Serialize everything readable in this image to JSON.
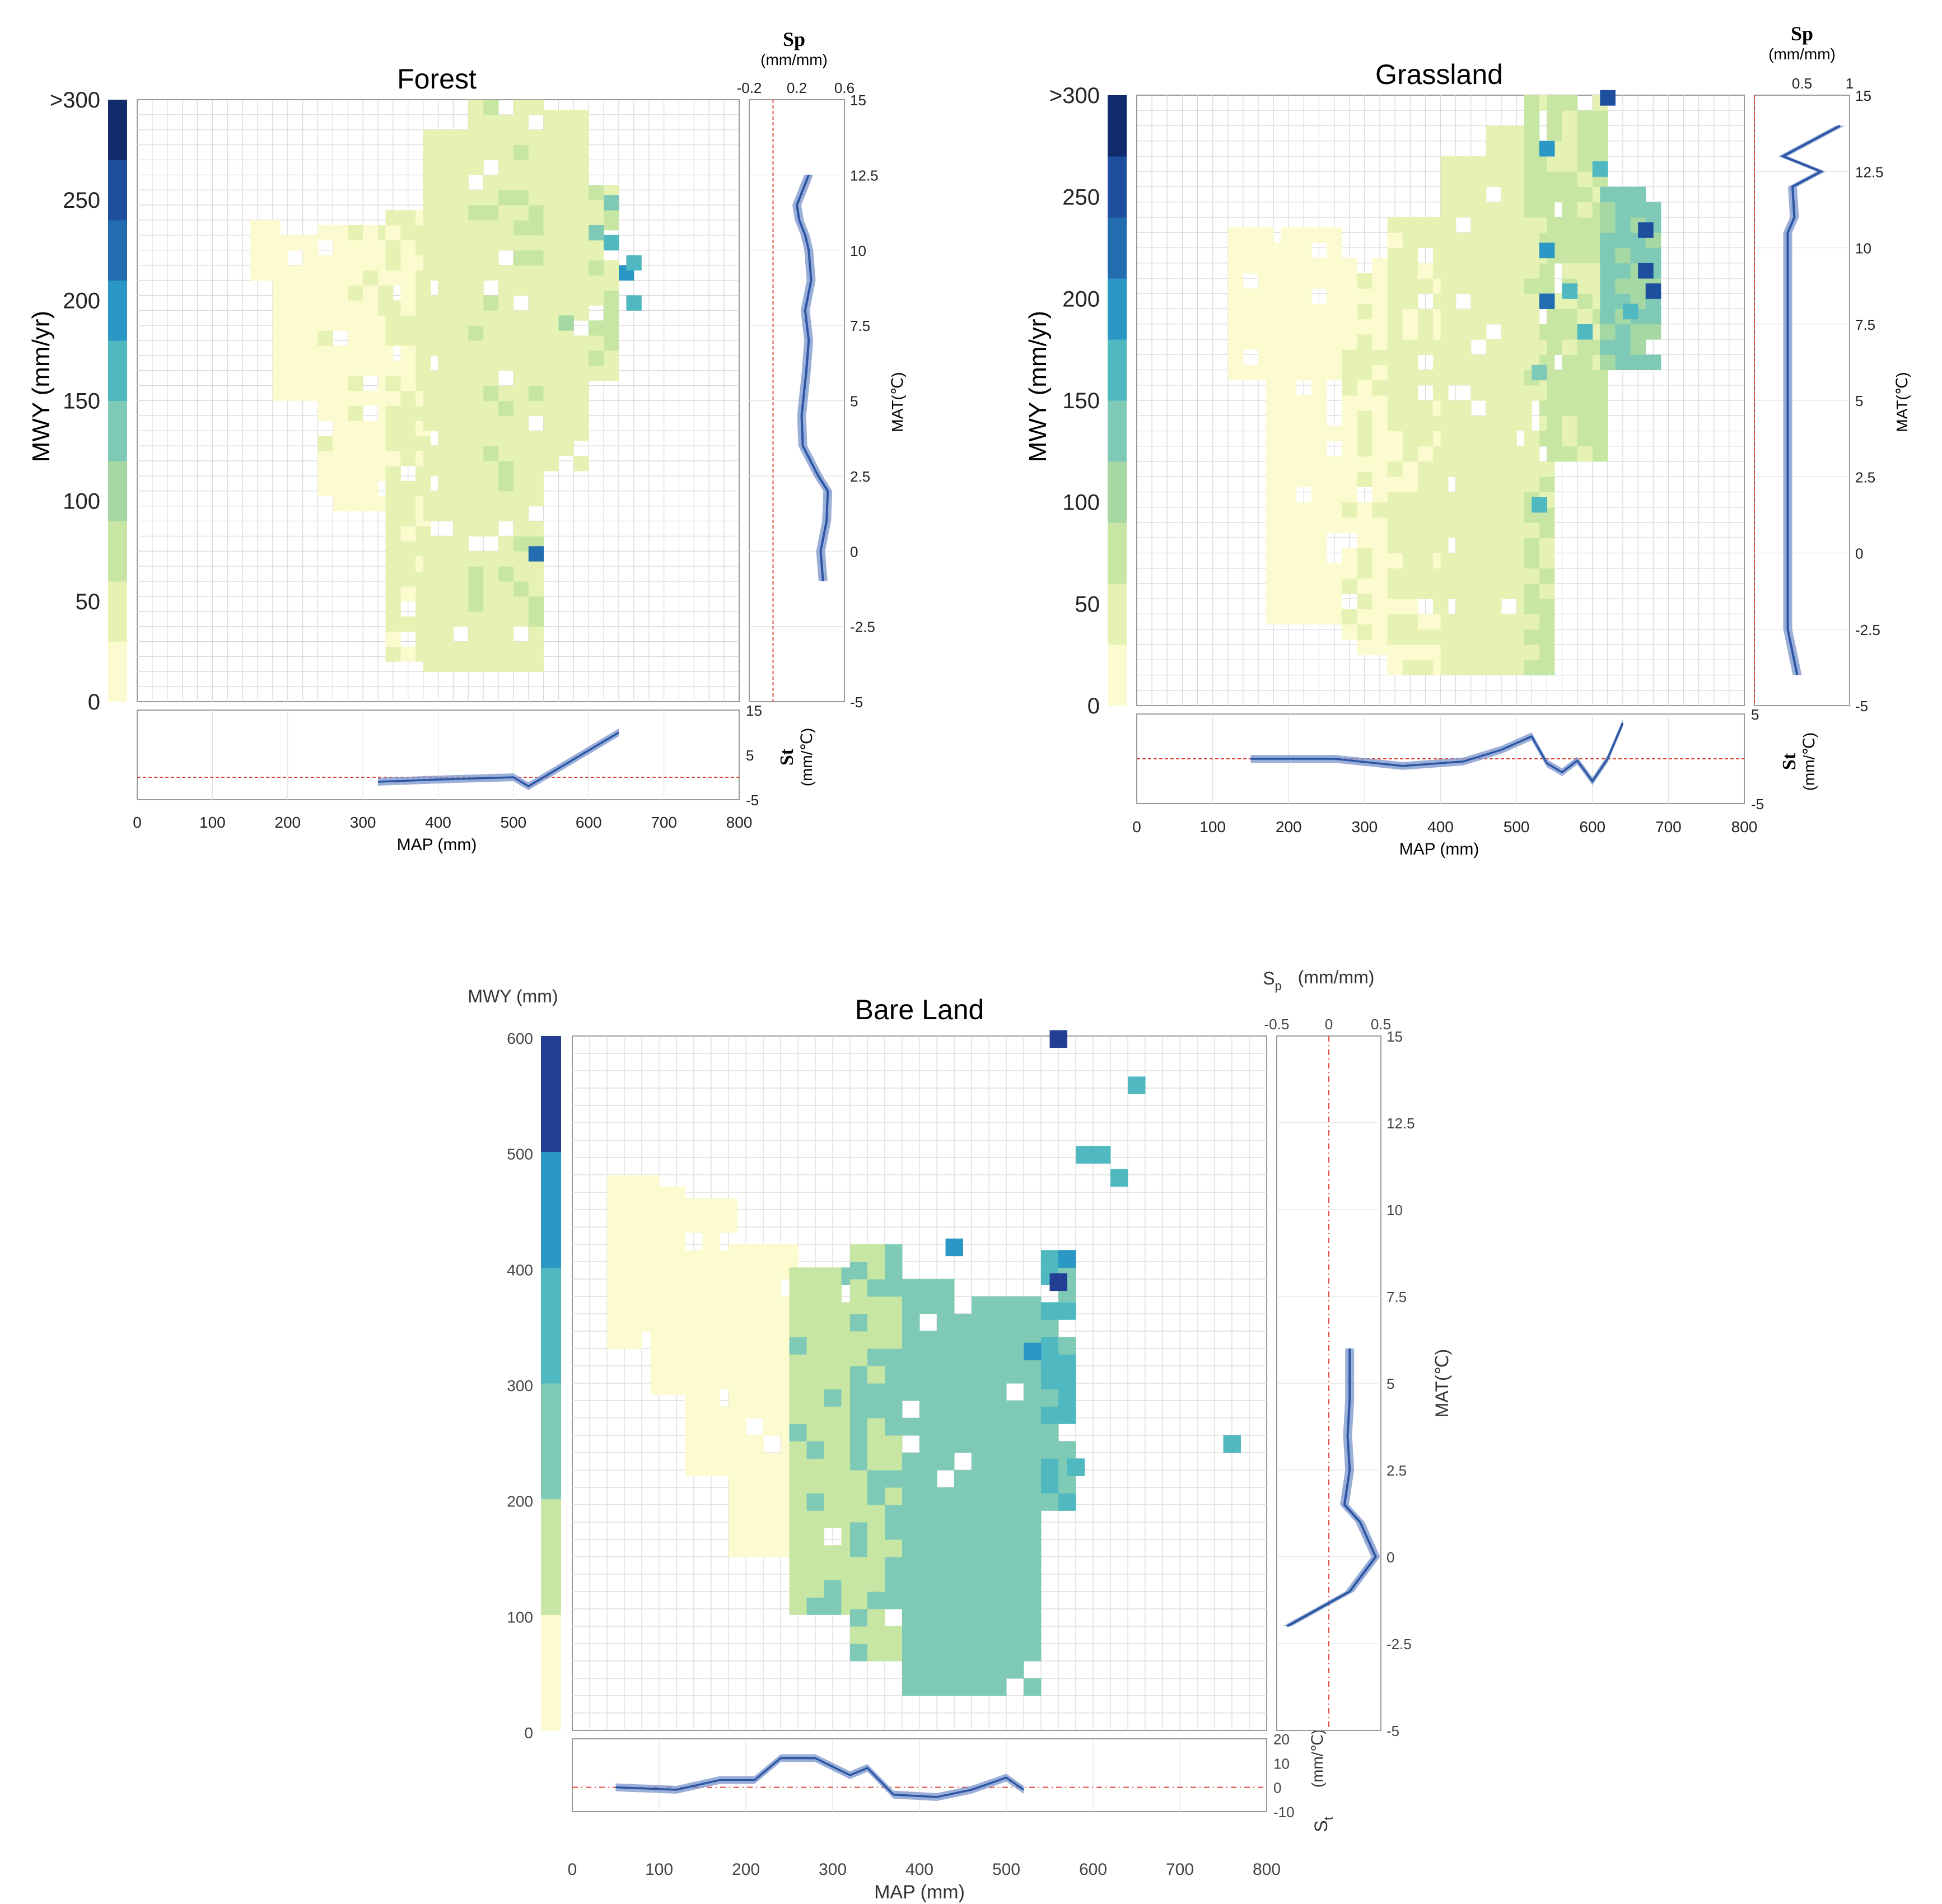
{
  "panels": {
    "forest": {
      "title": "Forest",
      "ylabel": "MWY (mm/yr)",
      "cbar_ticks": [
        ">300",
        "250",
        "200",
        "150",
        "100",
        "50",
        "0"
      ],
      "xlabel": "MAP (mm)",
      "xticks": [
        "0",
        "100",
        "200",
        "300",
        "400",
        "500",
        "600",
        "700",
        "800"
      ],
      "sp_title": "Sp",
      "sp_unit": "(mm/mm)",
      "sp_ticks": [
        "-0.2",
        "0.2",
        "0.6"
      ],
      "mat_ticks": [
        "15",
        "12.5",
        "10",
        "7.5",
        "5",
        "2.5",
        "0",
        "-2.5",
        "-5"
      ],
      "mat_label": "MAT(℃)",
      "st_ticks": [
        "15",
        "5",
        "-5"
      ],
      "st_title": "St",
      "st_unit": "(mm/℃)"
    },
    "grassland": {
      "title": "Grassland",
      "ylabel": "MWY (mm/yr)",
      "cbar_ticks": [
        ">300",
        "250",
        "200",
        "150",
        "100",
        "50",
        "0"
      ],
      "xlabel": "MAP (mm)",
      "xticks": [
        "0",
        "100",
        "200",
        "300",
        "400",
        "500",
        "600",
        "700",
        "800"
      ],
      "sp_title": "Sp",
      "sp_unit": "(mm/mm)",
      "sp_ticks": [
        "0.5",
        "1"
      ],
      "mat_ticks": [
        "15",
        "12.5",
        "10",
        "7.5",
        "5",
        "2.5",
        "0",
        "-2.5",
        "-5"
      ],
      "mat_label": "MAT(℃)",
      "st_ticks": [
        "5",
        "-5"
      ],
      "st_title": "St",
      "st_unit": "(mm/℃)"
    },
    "bare": {
      "title": "Bare Land",
      "ylabel": "MWY (mm)",
      "cbar_ticks": [
        "600",
        "500",
        "400",
        "300",
        "200",
        "100",
        "0"
      ],
      "xlabel": "MAP (mm)",
      "xticks": [
        "0",
        "100",
        "200",
        "300",
        "400",
        "500",
        "600",
        "700",
        "800"
      ],
      "sp_title": "S",
      "sp_sub": "p",
      "sp_unit": "(mm/mm)",
      "sp_ticks": [
        "-0.5",
        "0",
        "0.5"
      ],
      "mat_ticks": [
        "15",
        "12.5",
        "10",
        "7.5",
        "5",
        "2.5",
        "0",
        "-2.5",
        "-5"
      ],
      "mat_label": "MAT(℃)",
      "st_ticks": [
        "20",
        "10",
        "0",
        "-10"
      ],
      "st_title": "S",
      "st_sub": "t",
      "st_unit": "(mm/℃)"
    }
  },
  "chart_data": [
    {
      "type": "heatmap",
      "title": "Forest",
      "xlabel": "MAP (mm)",
      "ylabel": "MWY (mm/yr)",
      "xlim": [
        0,
        800
      ],
      "ylim": [
        0,
        300
      ],
      "colormap": [
        "#fbfbcf",
        "#e6f2b3",
        "#c8e6a3",
        "#a6d8a4",
        "#7fcab6",
        "#4fb8c1",
        "#2a97c4",
        "#226db0",
        "#1d4f9e",
        "#112a6b"
      ],
      "colormap_bounds": [
        0,
        25,
        50,
        75,
        100,
        125,
        150,
        175,
        200,
        250,
        300
      ],
      "side_sp": {
        "xlabel": "Sp (mm/mm)",
        "xlim": [
          -0.2,
          0.6
        ],
        "ylabel": "MAT(℃)",
        "ylim": [
          -5,
          15
        ],
        "reference": 0,
        "points": [
          [
            0.42,
            -1
          ],
          [
            0.4,
            0
          ],
          [
            0.45,
            1
          ],
          [
            0.46,
            2
          ],
          [
            0.38,
            2.5
          ],
          [
            0.25,
            3.5
          ],
          [
            0.24,
            4.5
          ],
          [
            0.28,
            6
          ],
          [
            0.3,
            7
          ],
          [
            0.27,
            8
          ],
          [
            0.32,
            9
          ],
          [
            0.3,
            10
          ],
          [
            0.27,
            10.5
          ],
          [
            0.22,
            11
          ],
          [
            0.2,
            11.5
          ],
          [
            0.25,
            12
          ],
          [
            0.3,
            12.5
          ]
        ]
      },
      "side_st": {
        "xlabel": "MAP (mm)",
        "xlim": [
          0,
          800
        ],
        "ylabel": "St (mm/℃)",
        "ylim": [
          -5,
          15
        ],
        "reference": 0,
        "points": [
          [
            320,
            -1
          ],
          [
            400,
            -0.5
          ],
          [
            500,
            0
          ],
          [
            520,
            -2
          ],
          [
            550,
            1
          ],
          [
            600,
            6
          ],
          [
            640,
            10
          ]
        ]
      },
      "band_cells": [
        {
          "x": [
            150,
            180
          ],
          "y": [
            210,
            235
          ],
          "v": 0.05
        },
        {
          "x": [
            180,
            240
          ],
          "y": [
            150,
            230
          ],
          "v": 0.05
        },
        {
          "x": [
            240,
            330
          ],
          "y": [
            95,
            235
          ],
          "v": 0.07
        },
        {
          "x": [
            330,
            380
          ],
          "y": [
            20,
            240
          ],
          "v": 0.12
        },
        {
          "x": [
            380,
            440
          ],
          "y": [
            15,
            285
          ],
          "v": 0.15
        },
        {
          "x": [
            440,
            540
          ],
          "y": [
            15,
            295
          ],
          "v": 0.17
        },
        {
          "x": [
            540,
            600
          ],
          "y": [
            115,
            295
          ],
          "v": 0.16
        },
        {
          "x": [
            600,
            640
          ],
          "y": [
            160,
            255
          ],
          "v": 0.2
        }
      ],
      "hot_cells": [
        [
          520,
          70,
          0.75
        ],
        [
          620,
          225,
          0.55
        ],
        [
          640,
          210,
          0.6
        ],
        [
          650,
          215,
          0.58
        ],
        [
          620,
          245,
          0.45
        ],
        [
          650,
          195,
          0.5
        ],
        [
          600,
          230,
          0.45
        ],
        [
          560,
          185,
          0.3
        ]
      ]
    },
    {
      "type": "heatmap",
      "title": "Grassland",
      "xlabel": "MAP (mm)",
      "ylabel": "MWY (mm/yr)",
      "xlim": [
        0,
        800
      ],
      "ylim": [
        0,
        300
      ],
      "colormap": [
        "#fbfbcf",
        "#e6f2b3",
        "#c8e6a3",
        "#a6d8a4",
        "#7fcab6",
        "#4fb8c1",
        "#2a97c4",
        "#226db0",
        "#1d4f9e",
        "#112a6b"
      ],
      "colormap_bounds": [
        0,
        25,
        50,
        75,
        100,
        125,
        150,
        175,
        200,
        250,
        300
      ],
      "side_sp": {
        "xlabel": "Sp (mm/mm)",
        "xlim": [
          0,
          1
        ],
        "ylabel": "MAT(℃)",
        "ylim": [
          -5,
          15
        ],
        "reference": 0,
        "points": [
          [
            0.45,
            -4
          ],
          [
            0.35,
            -2.5
          ],
          [
            0.35,
            10.5
          ],
          [
            0.42,
            11
          ],
          [
            0.4,
            12
          ],
          [
            0.7,
            12.5
          ],
          [
            0.3,
            13
          ],
          [
            0.9,
            14
          ]
        ]
      },
      "side_st": {
        "xlabel": "MAP (mm)",
        "xlim": [
          0,
          800
        ],
        "ylabel": "St (mm/℃)",
        "ylim": [
          -5,
          5
        ],
        "reference": 0,
        "points": [
          [
            150,
            0
          ],
          [
            260,
            0
          ],
          [
            350,
            -0.8
          ],
          [
            430,
            -0.3
          ],
          [
            480,
            1
          ],
          [
            520,
            2.5
          ],
          [
            540,
            -0.5
          ],
          [
            560,
            -1.5
          ],
          [
            580,
            -0.2
          ],
          [
            600,
            -2.5
          ],
          [
            620,
            0
          ],
          [
            640,
            4
          ]
        ]
      },
      "band_cells": [
        {
          "x": [
            120,
            170
          ],
          "y": [
            160,
            235
          ],
          "v": 0.05
        },
        {
          "x": [
            170,
            270
          ],
          "y": [
            40,
            235
          ],
          "v": 0.05
        },
        {
          "x": [
            270,
            330
          ],
          "y": [
            25,
            220
          ],
          "v": 0.08
        },
        {
          "x": [
            330,
            400
          ],
          "y": [
            15,
            240
          ],
          "v": 0.12
        },
        {
          "x": [
            400,
            460
          ],
          "y": [
            15,
            270
          ],
          "v": 0.14
        },
        {
          "x": [
            460,
            510
          ],
          "y": [
            15,
            285
          ],
          "v": 0.16
        },
        {
          "x": [
            510,
            540
          ],
          "y": [
            15,
            300
          ],
          "v": 0.2
        },
        {
          "x": [
            540,
            610
          ],
          "y": [
            120,
            300
          ],
          "v": 0.22
        },
        {
          "x": [
            610,
            680
          ],
          "y": [
            165,
            250
          ],
          "v": 0.4
        }
      ],
      "hot_cells": [
        [
          530,
          270,
          0.65
        ],
        [
          530,
          220,
          0.6
        ],
        [
          530,
          195,
          0.7
        ],
        [
          610,
          295,
          0.85
        ],
        [
          660,
          230,
          0.85
        ],
        [
          660,
          210,
          0.88
        ],
        [
          670,
          200,
          0.8
        ],
        [
          560,
          200,
          0.55
        ],
        [
          580,
          180,
          0.5
        ],
        [
          600,
          260,
          0.5
        ],
        [
          640,
          190,
          0.55
        ],
        [
          520,
          160,
          0.45
        ],
        [
          520,
          95,
          0.5
        ]
      ]
    },
    {
      "type": "heatmap",
      "title": "Bare Land",
      "xlabel": "MAP (mm)",
      "ylabel": "MWY (mm)",
      "xlim": [
        0,
        800
      ],
      "ylim": [
        0,
        600
      ],
      "colormap": [
        "#fbfbcf",
        "#c8e6a3",
        "#7fcab6",
        "#4fb8c1",
        "#2a97c4",
        "#223f94"
      ],
      "colormap_bounds": [
        0,
        100,
        200,
        300,
        400,
        500,
        600
      ],
      "side_sp": {
        "xlabel": "Sp (mm/mm)",
        "xlim": [
          -0.5,
          0.5
        ],
        "ylabel": "MAT(℃)",
        "ylim": [
          -5,
          15
        ],
        "reference": 0,
        "points": [
          [
            -0.4,
            -2
          ],
          [
            0.2,
            -1
          ],
          [
            0.45,
            0
          ],
          [
            0.3,
            1
          ],
          [
            0.15,
            1.5
          ],
          [
            0.2,
            2.5
          ],
          [
            0.18,
            3.5
          ],
          [
            0.2,
            4.5
          ],
          [
            0.2,
            6
          ]
        ]
      },
      "side_st": {
        "xlabel": "MAP (mm)",
        "xlim": [
          0,
          800
        ],
        "ylabel": "St (mm/℃)",
        "ylim": [
          -10,
          20
        ],
        "reference": 0,
        "points": [
          [
            50,
            0
          ],
          [
            120,
            -1
          ],
          [
            170,
            3
          ],
          [
            210,
            3
          ],
          [
            240,
            12
          ],
          [
            280,
            12
          ],
          [
            320,
            5
          ],
          [
            340,
            8
          ],
          [
            370,
            -3
          ],
          [
            420,
            -4
          ],
          [
            460,
            -1
          ],
          [
            500,
            4
          ],
          [
            520,
            -1
          ]
        ]
      },
      "band_cells": [
        {
          "x": [
            40,
            90
          ],
          "y": [
            330,
            480
          ],
          "v": 0.05
        },
        {
          "x": [
            90,
            130
          ],
          "y": [
            290,
            470
          ],
          "v": 0.05
        },
        {
          "x": [
            130,
            180
          ],
          "y": [
            220,
            460
          ],
          "v": 0.05
        },
        {
          "x": [
            180,
            250
          ],
          "y": [
            150,
            420
          ],
          "v": 0.07
        },
        {
          "x": [
            250,
            320
          ],
          "y": [
            100,
            400
          ],
          "v": 0.3
        },
        {
          "x": [
            320,
            380
          ],
          "y": [
            60,
            410
          ],
          "v": 0.33
        },
        {
          "x": [
            380,
            440
          ],
          "y": [
            30,
            380
          ],
          "v": 0.38
        },
        {
          "x": [
            440,
            540
          ],
          "y": [
            30,
            370
          ],
          "v": 0.45
        },
        {
          "x": [
            540,
            580
          ],
          "y": [
            190,
            410
          ],
          "v": 0.5
        }
      ],
      "hot_cells": [
        [
          550,
          590,
          0.85
        ],
        [
          550,
          380,
          0.85
        ],
        [
          560,
          400,
          0.8
        ],
        [
          640,
          550,
          0.6
        ],
        [
          580,
          490,
          0.6
        ],
        [
          600,
          490,
          0.65
        ],
        [
          620,
          470,
          0.65
        ],
        [
          430,
          410,
          0.7
        ],
        [
          520,
          320,
          0.7
        ],
        [
          750,
          240,
          0.5
        ],
        [
          570,
          220,
          0.6
        ]
      ]
    }
  ]
}
